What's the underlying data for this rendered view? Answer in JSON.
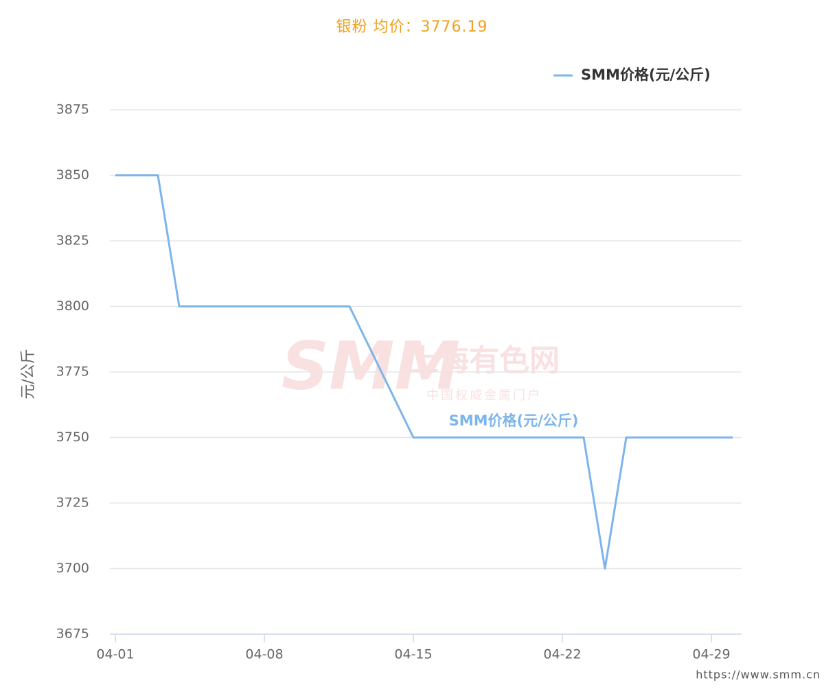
{
  "chart_data": {
    "type": "line",
    "title": "银粉 均价：3776.19",
    "y_label": "元/公斤",
    "x": [
      "04-01",
      "04-02",
      "04-03",
      "04-04",
      "04-08",
      "04-09",
      "04-10",
      "04-11",
      "04-12",
      "04-15",
      "04-16",
      "04-17",
      "04-18",
      "04-19",
      "04-22",
      "04-23",
      "04-24",
      "04-25",
      "04-26",
      "04-29",
      "04-30"
    ],
    "series": [
      {
        "name": "SMM价格(元/公斤)",
        "color": "#7cb5ec",
        "values": [
          3850,
          3850,
          3850,
          3800,
          3800,
          3800,
          3800,
          3800,
          3800,
          3750,
          3750,
          3750,
          3750,
          3750,
          3750,
          3750,
          3700,
          3750,
          3750,
          3750,
          3750
        ]
      }
    ],
    "xlim": [
      "04-01",
      "04-30"
    ],
    "xticks": [
      "04-01",
      "04-08",
      "04-15",
      "04-22",
      "04-29"
    ],
    "ylim": [
      3675,
      3875
    ],
    "yticks": [
      3675,
      3700,
      3725,
      3750,
      3775,
      3800,
      3825,
      3850,
      3875
    ],
    "grid": true,
    "legend": "top-right",
    "watermark": {
      "logo": "SMM",
      "name": "上海有色网",
      "slogan": "中国权威金属门户"
    },
    "source": "https://www.smm.cn"
  }
}
